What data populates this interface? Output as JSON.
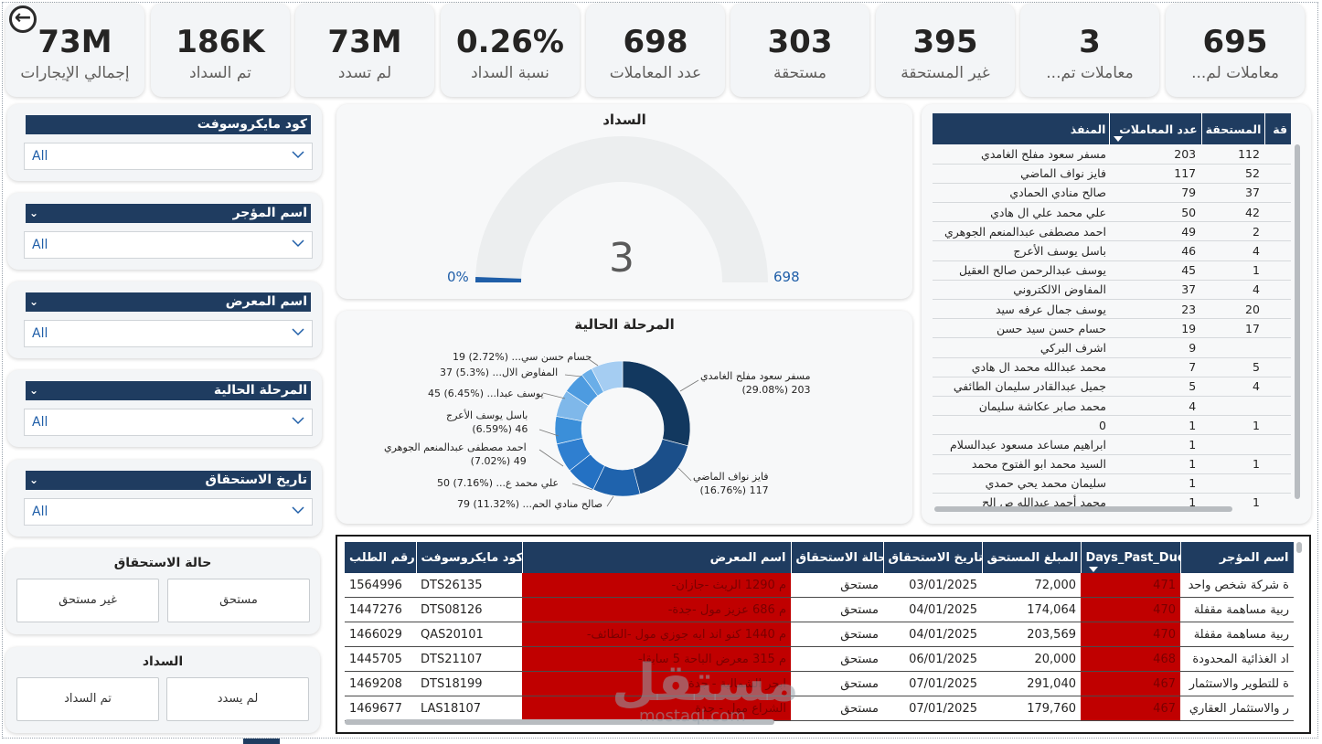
{
  "kpis": [
    {
      "value": "73M",
      "label": "إجمالي الإيجارات"
    },
    {
      "value": "186K",
      "label": "تم السداد"
    },
    {
      "value": "73M",
      "label": "لم تسدد"
    },
    {
      "value": "0.26%",
      "label": "نسبة السداد"
    },
    {
      "value": "698",
      "label": "عدد المعاملات"
    },
    {
      "value": "303",
      "label": "مستحقة"
    },
    {
      "value": "395",
      "label": "غير المستحقة"
    },
    {
      "value": "3",
      "label": "...معاملات تم"
    },
    {
      "value": "695",
      "label": "...معاملات لم"
    }
  ],
  "slicers": [
    {
      "title": "كود مايكروسوفت",
      "value": "All"
    },
    {
      "title": "اسم المؤجر",
      "value": "All"
    },
    {
      "title": "اسم المعرض",
      "value": "All"
    },
    {
      "title": "المرحلة الحالية",
      "value": "All"
    },
    {
      "title": "تاريخ الاستحقاق",
      "value": "All"
    }
  ],
  "due_status": {
    "title": "حالة الاستحقاق",
    "options": [
      "غير مستحق",
      "مستحق"
    ]
  },
  "payment": {
    "title": "السداد",
    "options": [
      "تم السداد",
      "لم يسدد"
    ]
  },
  "gauge": {
    "title": "السداد",
    "value": "3",
    "min": "0%",
    "max": "698",
    "fraction": 0.0043
  },
  "donut": {
    "title": "المرحلة الحالية",
    "labels": [
      {
        "text": "مسفر سعود مفلح الغامدي",
        "value": "203 (29.08%)"
      },
      {
        "text": "فايز نواف الماضي",
        "value": "117 (16.76%)"
      },
      {
        "text": "79 (11.32%) ...صالح منادي الحم",
        "value": ""
      },
      {
        "text": "50 (7.16%) ...علي محمد ع",
        "value": ""
      },
      {
        "text": "احمد مصطفى عبدالمنعم الجوهري",
        "value": "49 (7.02%)"
      },
      {
        "text": "باسل يوسف الأعرج",
        "value": "46 (6.59%)"
      },
      {
        "text": "45 (6.45%) ...يوسف عبدا",
        "value": ""
      },
      {
        "text": "37 (5.3%) ...المفاوض الال",
        "value": ""
      },
      {
        "text": "19 (2.72%) ...حسام حسن سي",
        "value": ""
      }
    ]
  },
  "chart_data": {
    "type": "pie",
    "title": "المرحلة الحالية",
    "categories": [
      "مسفر سعود مفلح الغامدي",
      "فايز نواف الماضي",
      "صالح منادي الحمادي",
      "علي محمد علي ال هادي",
      "احمد مصطفى عبدالمنعم الجوهري",
      "باسل يوسف الأعرج",
      "يوسف عبدالرحمن صالح العقيل",
      "المفاوض الالكتروني",
      "حسام حسن سيد حسن",
      "other"
    ],
    "values": [
      203,
      117,
      79,
      50,
      49,
      46,
      45,
      37,
      19,
      53
    ],
    "colors": [
      "#12385f",
      "#1b4f8a",
      "#1f63ad",
      "#2471c3",
      "#2f7fd0",
      "#3b8fd9",
      "#7fb8ea",
      "#4d9be0",
      "#6aaee8",
      "#a5cdf2"
    ]
  },
  "right_table": {
    "headers": [
      "المنفذ",
      "عدد المعاملات",
      "المستحقة",
      "قة"
    ],
    "rows": [
      [
        "مسفر سعود مفلح الغامدي",
        "203",
        "112"
      ],
      [
        "فايز نواف الماضي",
        "117",
        "52"
      ],
      [
        "صالح منادي الحمادي",
        "79",
        "37"
      ],
      [
        "علي محمد علي ال هادي",
        "50",
        "42"
      ],
      [
        "احمد مصطفى عبدالمنعم الجوهري",
        "49",
        "2"
      ],
      [
        "باسل يوسف الأعرج",
        "46",
        "4"
      ],
      [
        "يوسف عبدالرحمن صالح العقيل",
        "45",
        "1"
      ],
      [
        "المفاوض الالكتروني",
        "37",
        "4"
      ],
      [
        "يوسف جمال عرفه سيد",
        "23",
        "20"
      ],
      [
        "حسام حسن سيد حسن",
        "19",
        "17"
      ],
      [
        "اشرف البركي",
        "9",
        ""
      ],
      [
        "محمد عبدالله محمد ال هادي",
        "7",
        "5"
      ],
      [
        "جميل عبدالقادر سليمان الطائفي",
        "5",
        "4"
      ],
      [
        "محمد صابر عكاشة سليمان",
        "4",
        ""
      ],
      [
        "0",
        "1",
        "1"
      ],
      [
        "ابراهيم مساعد مسعود عبدالسلام",
        "1",
        ""
      ],
      [
        "السيد محمد ابو الفتوح محمد",
        "1",
        "1"
      ],
      [
        "سليمان محمد يحي حمدي",
        "1",
        ""
      ],
      [
        "محمد أحمد عبدالله ص الح",
        "1",
        "1"
      ]
    ]
  },
  "bottom_table": {
    "headers": [
      "رقم الطلب",
      "كود مايكروسوفت",
      "اسم المعرض",
      "حالة الاستحقاق",
      "تاريخ الاستحقاق",
      "المبلغ المستحق",
      "Days_Past_Due",
      "اسم المؤجر"
    ],
    "rows": [
      [
        "1564996",
        "DTS26135",
        "م 1290 الريث -جازان-",
        "مستحق",
        "03/01/2025",
        "72,000",
        "471",
        "ة شركة شخص واحد"
      ],
      [
        "1447276",
        "DTS08126",
        "م 686 عزيز مول -جدة-",
        "مستحق",
        "04/01/2025",
        "174,064",
        "470",
        "ربية مساهمة مقفلة"
      ],
      [
        "1466029",
        "QAS20101",
        "م 1440 كنو اند ايه جوزي مول -الطائف-",
        "مستحق",
        "04/01/2025",
        "203,569",
        "470",
        "ربية مساهمة مقفلة"
      ],
      [
        "1445705",
        "DTS21107",
        "م 315 معرض الباحة 5 سابقا-",
        "مستحق",
        "06/01/2025",
        "20,000",
        "468",
        "اد الغذائية المحدودة"
      ],
      [
        "1469208",
        "DTS18199",
        "ابحر الشمالية - جدة",
        "مستحق",
        "07/01/2025",
        "291,040",
        "467",
        "ة للتطوير والاستثمار"
      ],
      [
        "1469677",
        "LAS18107",
        "الشراع مول - جدة",
        "مستحق",
        "07/01/2025",
        "179,760",
        "467",
        "ر والاستثمار العقاري"
      ]
    ]
  },
  "watermark": {
    "main": "مستقل",
    "sub": "mostaql.com"
  }
}
